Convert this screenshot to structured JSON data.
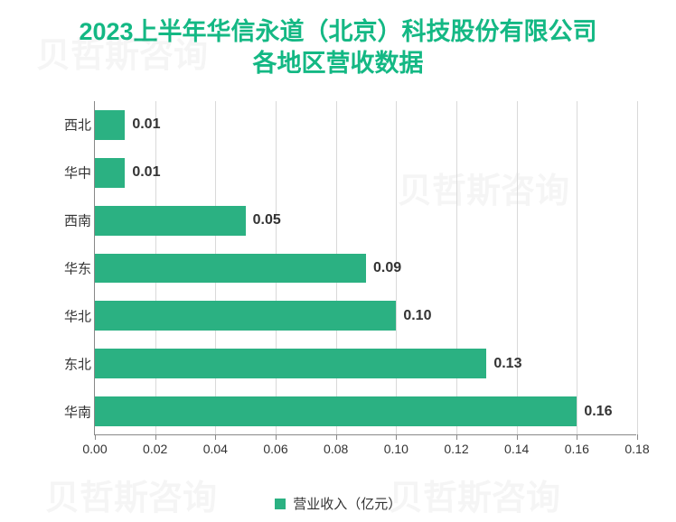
{
  "title_line1": "2023上半年华信永道（北京）科技股份有限公司",
  "title_line2": "各地区营收数据",
  "title_color": "#14b884",
  "title_fontsize": 27,
  "chart": {
    "type": "horizontal-bar",
    "background_color": "#ffffff",
    "grid_color": "#d9d9d9",
    "axis_color": "#888888",
    "bar_color": "#2bb182",
    "label_color": "#333333",
    "xlim_min": 0.0,
    "xlim_max": 0.18,
    "xtick_step": 0.02,
    "xticks": [
      "0.00",
      "0.02",
      "0.04",
      "0.06",
      "0.08",
      "0.10",
      "0.12",
      "0.14",
      "0.16",
      "0.18"
    ],
    "tick_fontsize": 14,
    "value_fontsize": 16,
    "ytick_fontsize": 15,
    "bar_width_ratio": 0.62,
    "categories": [
      "西北",
      "华中",
      "西南",
      "华东",
      "华北",
      "东北",
      "华南"
    ],
    "values": [
      0.01,
      0.01,
      0.05,
      0.09,
      0.1,
      0.13,
      0.16
    ],
    "value_labels": [
      "0.01",
      "0.01",
      "0.05",
      "0.09",
      "0.10",
      "0.13",
      "0.16"
    ]
  },
  "legend": {
    "label": "营业收入（亿元）",
    "color": "#2bb182",
    "fontsize": 15
  },
  "watermark_text": "贝哲斯咨询"
}
